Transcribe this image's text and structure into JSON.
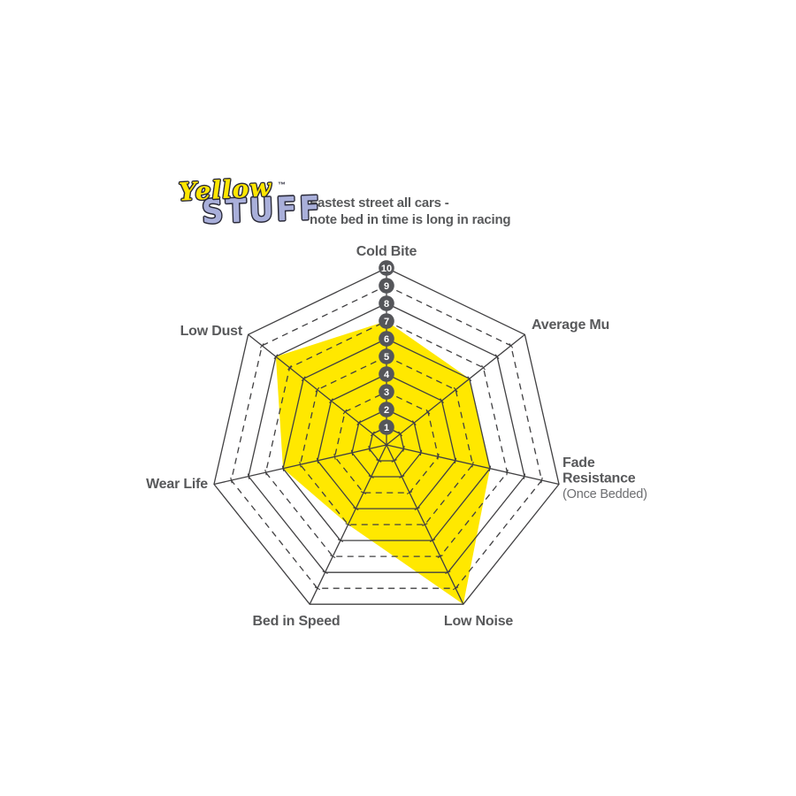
{
  "page": {
    "background": "#FFFFFF"
  },
  "logo": {
    "word1": "Yellow",
    "trademark": "™",
    "word2": "STUFF",
    "word1_color": "#FFE600",
    "word2_color": "#A9AFDA",
    "outline_color": "#2A2A38"
  },
  "header": {
    "subtitle_lines": [
      "Fastest street all cars -",
      "note bed in time is long in racing"
    ],
    "text_color": "#58595B"
  },
  "chart_data": {
    "type": "radar",
    "categories": [
      "Cold Bite",
      "Average Mu",
      "Fade Resistance (Once Bedded)",
      "Low Noise",
      "Bed in Speed",
      "Wear Life",
      "Low Dust"
    ],
    "values": [
      7,
      6,
      6,
      10,
      5,
      6,
      8
    ],
    "axes": [
      {
        "label": "Cold Bite",
        "value": 7,
        "display_lines": [
          {
            "text": "Cold Bite"
          }
        ]
      },
      {
        "label": "Average Mu",
        "value": 6,
        "display_lines": [
          {
            "text": "Average Mu"
          }
        ]
      },
      {
        "label": "Fade Resistance (Once Bedded)",
        "value": 6,
        "display_lines": [
          {
            "text": "Fade"
          },
          {
            "text": "Resistance"
          },
          {
            "text": "(Once Bedded)",
            "muted": true
          }
        ]
      },
      {
        "label": "Low Noise",
        "value": 10,
        "display_lines": [
          {
            "text": "Low Noise"
          }
        ]
      },
      {
        "label": "Bed in Speed",
        "value": 5,
        "display_lines": [
          {
            "text": "Bed in Speed"
          }
        ]
      },
      {
        "label": "Wear Life",
        "value": 6,
        "display_lines": [
          {
            "text": "Wear Life"
          }
        ]
      },
      {
        "label": "Low Dust",
        "value": 8,
        "display_lines": [
          {
            "text": "Low Dust"
          }
        ]
      }
    ],
    "scale": {
      "min": 1,
      "max": 10,
      "tick_labels": [
        "1",
        "2",
        "3",
        "4",
        "5",
        "6",
        "7",
        "8",
        "9",
        "10"
      ]
    },
    "style": {
      "fill_color": "#FFE800",
      "grid_color": "#414042",
      "label_color": "#58595B",
      "muted_label_color": "#6D6E71",
      "badge_fill": "#55565A",
      "badge_text_color": "#FFFFFF",
      "ring_pattern": "outer and even rings solid, odd rings dashed, innermost ring solid"
    },
    "layout_hints": {
      "sides": 7,
      "start_angle_deg": -90,
      "direction": "clockwise",
      "gridlines": 10,
      "legend": "none",
      "tick_badges_on_axis": "Cold Bite"
    }
  }
}
